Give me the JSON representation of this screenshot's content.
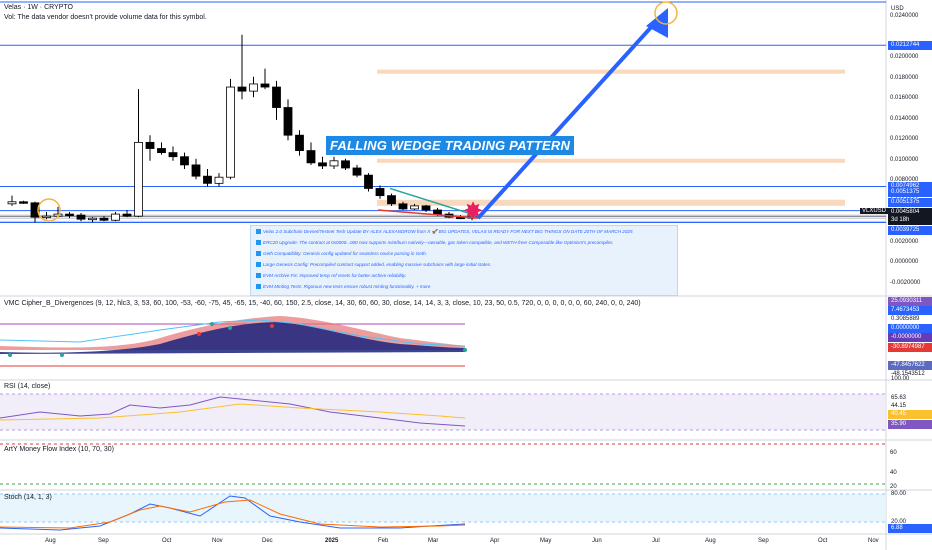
{
  "header": {
    "symbol": "Velas · 1W · CRYPTO",
    "vol_note": "Vol: The data vendor doesn't provide volume data for this symbol."
  },
  "currency": "USD",
  "symbol_tag": "VLXUSD",
  "callout": "FALLING WEDGE TRADING PATTERN",
  "news": [
    "Velas 2.0 Subchain Devnet/Testnet Tech Update BY ALEX ALEXANDROW from X   🚀 BIG UPDATES, VELAS IS READY FOR NEXT BIG THINGS ON DATE 20TH OF MARCH 2025",
    "ERC20 Upgrade: The contract at 0x0000...000 now supports mint/burn natively—ownable, gas token-compatible, and WETH-free! Composable like Optimism's precompiles.",
    "Geth Compatibility: Genesis config updated for seamless novice parsing in Geth.",
    "Large Genesis Config: Precompiled contract support added, enabling massive subchains with large initial states.",
    "EVM Archive Fix: Improved temp ref resets for better archive reliability.",
    "EVM Minting Tests: Rigorous new tests ensure robust minting functionality. + more"
  ],
  "price_axis": {
    "ticks": [
      "0.0240000",
      "0.0200000",
      "0.0180000",
      "0.0160000",
      "0.0140000",
      "0.0120000",
      "0.0100000",
      "0.0080000",
      "0.0060000",
      "0.0040000",
      "0.0020000",
      "0.0000000",
      "-0.0020000"
    ],
    "labels": [
      {
        "text": "0.0212744",
        "color": "#2962ff"
      },
      {
        "text": "0.0074962",
        "color": "#2962ff"
      },
      {
        "text": "0.0051375",
        "color": "#2962ff"
      },
      {
        "text": "0.0051375",
        "color": "#2962ff"
      },
      {
        "text": "0.0045804",
        "color": "#131722"
      },
      {
        "text": "3d 18h",
        "color": "#131722"
      },
      {
        "text": "0.0039725",
        "color": "#2962ff"
      }
    ]
  },
  "panes": {
    "vmc_title": "VMC Cipher_B_Divergences (9, 12, hlc3, 3, 53, 60, 100, -53, -60, -75, 45, -65, 15, -40, 60, 150, 2.5, close, 14, 30, 60, 60, 30, close, 14, 14, 3, 3, close, 10, 23, 50, 0.5, 720, 0, 0, 0, 0, 0, 0, 60, 240, 0, 0, 240)",
    "vmc_labels": [
      {
        "text": "25.0930311",
        "color": "#7e57c2"
      },
      {
        "text": "7.4673453",
        "color": "#2962ff"
      },
      {
        "text": "0.3085889",
        "color": "#131722"
      },
      {
        "text": "0.0000000",
        "color": "#2962ff"
      },
      {
        "text": "-0.0000000",
        "color": "#673ab7"
      },
      {
        "text": "-30.8974987",
        "color": "#e53935"
      },
      {
        "text": "-47.8457622",
        "color": "#5c6bc0"
      },
      {
        "text": "-48.1543512",
        "color": "#131722"
      }
    ],
    "rsi_title": "RSI (14, close)",
    "rsi_labels": [
      {
        "text": "100.00",
        "color": "#131722"
      },
      {
        "text": "65.63",
        "color": "#131722"
      },
      {
        "text": "44.15",
        "color": "#131722"
      },
      {
        "text": "40.45",
        "color": "#fbc02d"
      },
      {
        "text": "35.90",
        "color": "#7e57c2"
      }
    ],
    "mfi_title": "ArtY Money Flow Index (10, 70, 30)",
    "mfi_labels": [
      "60",
      "40",
      "20"
    ],
    "stoch_title": "Stoch (14, 1, 3)",
    "stoch_labels": [
      {
        "text": "80.00",
        "color": "#131722"
      },
      {
        "text": "20.00",
        "color": "#131722"
      },
      {
        "text": "6.88",
        "color": "#2962ff"
      }
    ]
  },
  "chart_data": {
    "type": "candlestick",
    "title": "Velas · 1W · CRYPTO",
    "ylabel": "USD",
    "ylim": [
      -0.003,
      0.0255
    ],
    "x_ticks": [
      "Aug",
      "Sep",
      "Oct",
      "Nov",
      "Dec",
      "2025",
      "Feb",
      "Mar",
      "Apr",
      "May",
      "Jun",
      "Jul",
      "Aug",
      "Sep",
      "Oct",
      "Nov"
    ],
    "candles": [
      [
        0.0058,
        0.0066,
        0.0056,
        0.006
      ],
      [
        0.006,
        0.0061,
        0.0058,
        0.0059
      ],
      [
        0.0059,
        0.006,
        0.004,
        0.0045
      ],
      [
        0.0045,
        0.005,
        0.0043,
        0.0046
      ],
      [
        0.0046,
        0.0055,
        0.0045,
        0.0048
      ],
      [
        0.0048,
        0.005,
        0.0044,
        0.0047
      ],
      [
        0.0047,
        0.0049,
        0.0041,
        0.0043
      ],
      [
        0.0043,
        0.0045,
        0.004,
        0.0044
      ],
      [
        0.0044,
        0.0046,
        0.0041,
        0.0042
      ],
      [
        0.0042,
        0.005,
        0.0041,
        0.0048
      ],
      [
        0.0048,
        0.0052,
        0.0045,
        0.0046
      ],
      [
        0.0046,
        0.017,
        0.0045,
        0.0118
      ],
      [
        0.0118,
        0.0125,
        0.01,
        0.0112
      ],
      [
        0.0112,
        0.0118,
        0.0106,
        0.0108
      ],
      [
        0.0108,
        0.0114,
        0.01,
        0.0104
      ],
      [
        0.0104,
        0.0108,
        0.0092,
        0.0096
      ],
      [
        0.0096,
        0.0102,
        0.0082,
        0.0085
      ],
      [
        0.0085,
        0.0092,
        0.0075,
        0.0078
      ],
      [
        0.0078,
        0.0088,
        0.0075,
        0.0084
      ],
      [
        0.0084,
        0.018,
        0.0082,
        0.0172
      ],
      [
        0.0172,
        0.0223,
        0.016,
        0.0168
      ],
      [
        0.0168,
        0.0182,
        0.0162,
        0.0175
      ],
      [
        0.0175,
        0.019,
        0.017,
        0.0172
      ],
      [
        0.0172,
        0.0178,
        0.014,
        0.0152
      ],
      [
        0.0152,
        0.016,
        0.012,
        0.0125
      ],
      [
        0.0125,
        0.013,
        0.0105,
        0.011
      ],
      [
        0.011,
        0.0118,
        0.0096,
        0.0098
      ],
      [
        0.0098,
        0.0104,
        0.0092,
        0.0095
      ],
      [
        0.0095,
        0.0104,
        0.0092,
        0.01
      ],
      [
        0.01,
        0.0102,
        0.0091,
        0.0093
      ],
      [
        0.0093,
        0.0096,
        0.0084,
        0.0086
      ],
      [
        0.0086,
        0.0088,
        0.007,
        0.0073
      ],
      [
        0.0073,
        0.0076,
        0.0063,
        0.0066
      ],
      [
        0.0066,
        0.0068,
        0.0056,
        0.0058
      ],
      [
        0.0058,
        0.006,
        0.0052,
        0.0053
      ],
      [
        0.0053,
        0.0058,
        0.0052,
        0.0056
      ],
      [
        0.0056,
        0.0057,
        0.005,
        0.0052
      ],
      [
        0.0052,
        0.0054,
        0.0046,
        0.0048
      ],
      [
        0.0048,
        0.005,
        0.0044,
        0.0045
      ],
      [
        0.0045,
        0.0047,
        0.0043,
        0.0044
      ],
      [
        0.0044,
        0.0046,
        0.0042,
        0.0046
      ]
    ],
    "levels": [
      0.0255,
      0.0212744,
      0.0074962,
      0.0051375,
      0.0045804,
      0.0039725
    ],
    "zones": [
      [
        0.0185,
        0.0189
      ],
      [
        0.0098,
        0.0102
      ],
      [
        0.0056,
        0.0062
      ]
    ],
    "colors": {
      "up": "#ffffff",
      "down": "#000000",
      "level": "#2962ff",
      "zone": "#f7c9a3",
      "arrow": "#2962ff",
      "circle": "#f5b342",
      "star": "#e91e63"
    }
  }
}
